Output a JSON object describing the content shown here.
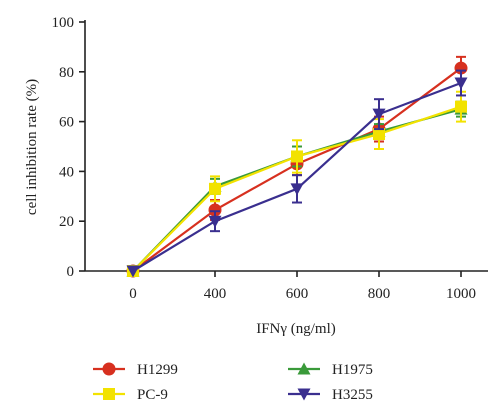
{
  "chart_data": {
    "type": "line",
    "xlabel": "IFNγ (ng/ml)",
    "ylabel": "cell inhibition rate (%)",
    "categories": [
      "0",
      "400",
      "600",
      "800",
      "1000"
    ],
    "ylim": [
      0,
      100
    ],
    "yticks": [
      0,
      20,
      40,
      60,
      80,
      100
    ],
    "grid": false,
    "legend_position": "bottom",
    "series": [
      {
        "name": "H1299",
        "color": "#d7301f",
        "marker": "circle",
        "values": [
          0,
          24.5,
          43,
          57,
          81.5
        ],
        "errors": [
          0,
          4,
          4.5,
          5,
          4.5
        ]
      },
      {
        "name": "H1975",
        "color": "#3a9a3a",
        "marker": "triangle-up",
        "values": [
          0,
          34,
          46,
          56,
          65
        ],
        "errors": [
          0,
          3,
          4,
          3,
          3
        ]
      },
      {
        "name": "PC-9",
        "color": "#f2e200",
        "marker": "square",
        "values": [
          0,
          33,
          46,
          55,
          66
        ],
        "errors": [
          0,
          5,
          6.5,
          6,
          6
        ]
      },
      {
        "name": "H3255",
        "color": "#3a2f8f",
        "marker": "triangle-down",
        "values": [
          0,
          20,
          33,
          63,
          75.5
        ],
        "errors": [
          0,
          4,
          5.5,
          6,
          5
        ]
      }
    ]
  }
}
